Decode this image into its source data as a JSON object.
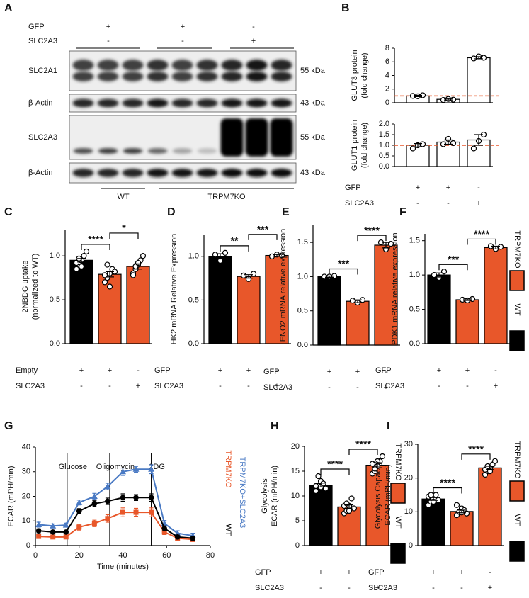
{
  "panel_labels": [
    "A",
    "B",
    "C",
    "D",
    "E",
    "F",
    "G",
    "H",
    "I"
  ],
  "blot": {
    "treatments": [
      {
        "name": "GFP",
        "signs": [
          "+",
          "+",
          "-"
        ]
      },
      {
        "name": "SLC2A3",
        "signs": [
          "-",
          "-",
          "+"
        ]
      }
    ],
    "rows": [
      {
        "name": "SLC2A1",
        "size": "55 kDa"
      },
      {
        "name": "β-Actin",
        "size": "43 kDa"
      },
      {
        "name": "SLC2A3",
        "size": "55 kDa"
      },
      {
        "name": "β-Actin",
        "size": "43 kDa"
      }
    ],
    "groups": [
      "WT",
      "TRPM7KO"
    ]
  },
  "chart_data": [
    {
      "type": "bar",
      "ylabel": [
        "GLUT3 protein",
        "(fold change)"
      ],
      "values": [
        1.0,
        0.5,
        6.6
      ],
      "errors": [
        0.1,
        0.1,
        0.15
      ],
      "points": [
        [
          1.0,
          0.95,
          1.1
        ],
        [
          0.4,
          0.55,
          0.45
        ],
        [
          6.5,
          6.8,
          6.6
        ]
      ],
      "colors": [
        "#ffffff",
        "#ffffff",
        "#ffffff"
      ],
      "ylim": [
        0,
        8
      ],
      "yticks": [
        0,
        2,
        4,
        6,
        8
      ],
      "reference_line": 1,
      "reference_color": "#e8572a"
    },
    {
      "type": "bar",
      "ylabel": [
        "GLUT1 protein",
        "(fold change)"
      ],
      "values": [
        1.0,
        1.15,
        1.25
      ],
      "errors": [
        0.08,
        0.1,
        0.25
      ],
      "points": [
        [
          0.85,
          1.0,
          1.05
        ],
        [
          1.05,
          1.3,
          1.1
        ],
        [
          0.85,
          1.2,
          1.5
        ]
      ],
      "colors": [
        "#ffffff",
        "#ffffff",
        "#ffffff"
      ],
      "ylim": [
        0,
        2
      ],
      "yticks": [
        {
          "value": 0,
          "label": "0.0"
        },
        0.5,
        {
          "value": 1,
          "label": "1.0"
        },
        1.5,
        {
          "value": 2,
          "label": "2.0"
        }
      ],
      "reference_line": 1,
      "reference_color": "#e8572a",
      "conditions": [
        {
          "name": "GFP",
          "marks": [
            "+",
            "+",
            "-"
          ]
        },
        {
          "name": "SLC2A3",
          "marks": [
            "-",
            "-",
            "+"
          ]
        }
      ]
    },
    {
      "type": "bar",
      "ylabel": [
        "2NBDG uptake",
        "(normalized to WT)"
      ],
      "values": [
        0.95,
        0.79,
        0.88
      ],
      "errors": [
        0.02,
        0.03,
        0.03
      ],
      "points": [
        [
          0.85,
          0.9,
          0.95,
          1.0,
          1.05,
          0.92,
          0.97,
          0.88
        ],
        [
          0.7,
          0.75,
          0.8,
          0.85,
          0.82,
          0.78,
          0.9,
          0.65
        ],
        [
          0.8,
          0.85,
          0.9,
          0.95,
          1.0,
          0.78,
          0.88,
          0.92
        ]
      ],
      "colors": [
        "#000000",
        "#e8572a",
        "#e8572a"
      ],
      "ylim": [
        0,
        1.3
      ],
      "yticks": [
        {
          "value": 0,
          "label": "0.0"
        },
        0.5,
        {
          "value": 1,
          "label": "1.0"
        }
      ],
      "significance": [
        "****",
        "*"
      ],
      "conditions": [
        {
          "name": "Empty",
          "marks": [
            "+",
            "+",
            "-"
          ]
        },
        {
          "name": "SLC2A3",
          "marks": [
            "-",
            "-",
            "+"
          ]
        }
      ]
    },
    {
      "type": "bar",
      "ylabel": [
        "HK2 mRNA Relative Expression"
      ],
      "values": [
        1.0,
        0.77,
        1.01
      ],
      "errors": [
        0.03,
        0.02,
        0.01
      ],
      "points": [
        [
          1.02,
          0.95,
          1.04
        ],
        [
          0.78,
          0.74,
          0.8
        ],
        [
          1.0,
          1.02,
          1.01
        ]
      ],
      "colors": [
        "#000000",
        "#e8572a",
        "#e8572a"
      ],
      "ylim": [
        0,
        1.25
      ],
      "yticks": [
        {
          "value": 0,
          "label": "0.0"
        },
        0.5,
        {
          "value": 1,
          "label": "1.0"
        }
      ],
      "significance": [
        "**",
        "***"
      ],
      "conditions": [
        {
          "name": "GFP",
          "marks": [
            "+",
            "+",
            "-"
          ]
        },
        {
          "name": "SLC2A3",
          "marks": [
            "-",
            "-",
            "+"
          ]
        }
      ]
    },
    {
      "type": "bar",
      "ylabel": [
        "ENO2 mRNA relative expression"
      ],
      "values": [
        1.0,
        0.64,
        1.46
      ],
      "errors": [
        0.01,
        0.02,
        0.04
      ],
      "points": [
        [
          1.0,
          1.0,
          1.01
        ],
        [
          0.65,
          0.62,
          0.66
        ],
        [
          1.5,
          1.4,
          1.48
        ]
      ],
      "colors": [
        "#000000",
        "#e8572a",
        "#e8572a"
      ],
      "ylim": [
        0,
        1.75
      ],
      "yticks": [
        {
          "value": 0,
          "label": "0.0"
        },
        0.5,
        {
          "value": 1,
          "label": "1.0"
        },
        1.5
      ],
      "significance": [
        "***",
        "****"
      ],
      "conditions": [
        {
          "name": "GFP",
          "marks": [
            "+",
            "+",
            "-"
          ]
        },
        {
          "name": "SLC2A3",
          "marks": [
            "-",
            "-",
            "+"
          ]
        }
      ]
    },
    {
      "type": "bar",
      "ylabel": [
        "PDK1 mRNA relative expression"
      ],
      "values": [
        1.0,
        0.64,
        1.4
      ],
      "errors": [
        0.03,
        0.01,
        0.02
      ],
      "points": [
        [
          1.0,
          0.96,
          1.05
        ],
        [
          0.64,
          0.63,
          0.65
        ],
        [
          1.42,
          1.38,
          1.41
        ]
      ],
      "colors": [
        "#000000",
        "#e8572a",
        "#e8572a"
      ],
      "ylim": [
        0,
        1.6
      ],
      "yticks": [
        {
          "value": 0,
          "label": "0.0"
        },
        0.5,
        {
          "value": 1,
          "label": "1.0"
        },
        1.5
      ],
      "significance": [
        "***",
        "****"
      ],
      "conditions": [
        {
          "name": "GFP",
          "marks": [
            "+",
            "+",
            "-"
          ]
        },
        {
          "name": "SLC2A3",
          "marks": [
            "-",
            "-",
            "+"
          ]
        }
      ],
      "legend": [
        {
          "name": "TRPM7KO",
          "color": "#e8572a"
        },
        {
          "name": "WT",
          "color": "#000000"
        }
      ]
    },
    {
      "type": "line",
      "xlabel": "Time (minutes)",
      "ylabel": "ECAR (mPH/min)",
      "xlim": [
        0,
        80
      ],
      "xticks": [
        0,
        20,
        40,
        60,
        80
      ],
      "ylim": [
        0,
        40
      ],
      "yticks": [
        0,
        10,
        20,
        30,
        40
      ],
      "events": [
        {
          "label": "Glucose",
          "x": 14.5
        },
        {
          "label": "Oligomycin",
          "x": 34
        },
        {
          "label": "2DG",
          "x": 53
        }
      ],
      "x": [
        1.5,
        8,
        14,
        20,
        27,
        33,
        40,
        46,
        53,
        59,
        65,
        72
      ],
      "series": [
        {
          "name": "TRPM7KO",
          "color": "#e8572a",
          "marker": "square",
          "values": [
            3.7,
            3.5,
            3.5,
            7.5,
            9,
            11,
            13.5,
            13.5,
            13.5,
            5.5,
            3,
            2.5
          ],
          "errors": [
            0.8,
            0.6,
            0.6,
            1.2,
            1.3,
            1.5,
            1.8,
            1.6,
            1.8,
            1,
            0.8,
            0.8
          ]
        },
        {
          "name": "TRPM7KO+SLC2A3",
          "color": "#4a7ac4",
          "marker": "triangle",
          "values": [
            8.5,
            8,
            8.3,
            17.5,
            20,
            24,
            30,
            31,
            31,
            9,
            5,
            4
          ],
          "errors": [
            1,
            0.8,
            0.8,
            1,
            1.2,
            1.3,
            1.5,
            1.2,
            1.8,
            1.2,
            1,
            1
          ]
        },
        {
          "name": "WT",
          "color": "#000000",
          "marker": "circle",
          "values": [
            6,
            5.5,
            5.5,
            14,
            17,
            18,
            19.5,
            19.5,
            19.5,
            7,
            3.5,
            3
          ],
          "errors": [
            0.8,
            0.7,
            0.7,
            1,
            1.2,
            1.3,
            1.5,
            1.2,
            1.5,
            1,
            0.8,
            0.8
          ]
        }
      ]
    },
    {
      "type": "bar",
      "ylabel": [
        "Glycolysis",
        "ECAR (mPH/min)"
      ],
      "values": [
        12.2,
        7.8,
        16.2
      ],
      "errors": [
        0.4,
        0.4,
        0.5
      ],
      "points": [
        [
          11,
          12,
          13,
          12.5,
          11.5,
          12,
          14,
          11.8
        ],
        [
          6.5,
          7,
          8,
          9.5,
          7.5,
          8,
          8.5,
          7
        ],
        [
          14.5,
          15,
          16,
          17,
          18,
          16.5,
          15.5,
          17
        ]
      ],
      "colors": [
        "#000000",
        "#e8572a",
        "#e8572a"
      ],
      "ylim": [
        0,
        20
      ],
      "yticks": [
        0,
        5,
        10,
        15,
        20
      ],
      "significance": [
        "****",
        "****"
      ],
      "conditions": [
        {
          "name": "GFP",
          "marks": [
            "+",
            "+",
            "-"
          ]
        },
        {
          "name": "SLC2A3",
          "marks": [
            "-",
            "-",
            "+"
          ]
        }
      ],
      "legend": [
        {
          "name": "TRPM7KO",
          "color": "#e8572a"
        },
        {
          "name": "WT",
          "color": "#000000"
        }
      ]
    },
    {
      "type": "bar",
      "ylabel": [
        "Glycolysis Capacity",
        "ECAR (mPH/min)"
      ],
      "values": [
        13.8,
        10.1,
        23
      ],
      "errors": [
        0.4,
        0.4,
        0.5
      ],
      "points": [
        [
          12,
          13,
          14,
          15,
          13.5,
          14.5,
          15,
          13
        ],
        [
          9,
          10,
          11,
          10.5,
          9.5,
          12,
          10,
          9.8
        ],
        [
          21,
          22,
          23,
          24,
          25,
          22.5,
          23.5,
          22
        ]
      ],
      "colors": [
        "#000000",
        "#e8572a",
        "#e8572a"
      ],
      "ylim": [
        0,
        30
      ],
      "yticks": [
        0,
        10,
        20,
        30
      ],
      "significance": [
        "****",
        "****"
      ],
      "conditions": [
        {
          "name": "GFP",
          "marks": [
            "+",
            "+",
            "-"
          ]
        },
        {
          "name": "SLC2A3",
          "marks": [
            "-",
            "-",
            "+"
          ]
        }
      ],
      "legend": [
        {
          "name": "TRPM7KO",
          "color": "#e8572a"
        },
        {
          "name": "WT",
          "color": "#000000"
        }
      ]
    }
  ]
}
